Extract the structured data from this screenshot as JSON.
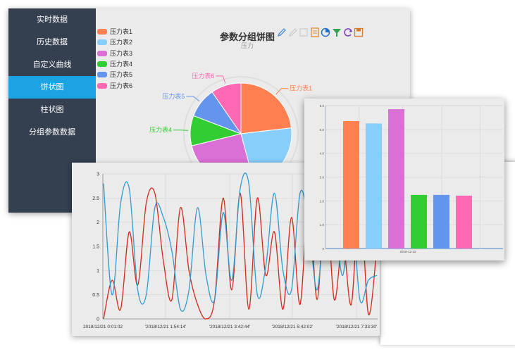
{
  "sidebar": {
    "items": [
      {
        "label": "实时数据"
      },
      {
        "label": "历史数据"
      },
      {
        "label": "自定义曲线"
      },
      {
        "label": "饼状图",
        "active": true
      },
      {
        "label": "柱状图"
      },
      {
        "label": "分组参数数据"
      }
    ]
  },
  "toolbox": {
    "icons": [
      "pen-icon",
      "pen-disabled-icon",
      "eraser-icon",
      "data-view-icon",
      "pie-switch-icon",
      "filter-icon",
      "refresh-icon",
      "save-image-icon"
    ]
  },
  "colors": {
    "sidebar_bg": "#343f50",
    "active": "#1ba3e4",
    "series": [
      "#ff7f50",
      "#87cefa",
      "#da70d6",
      "#32cd32",
      "#6495ed",
      "#ff69b4"
    ],
    "line_red": "#d42a1c",
    "line_blue": "#2f9bd0"
  },
  "chart_data": [
    {
      "type": "pie",
      "title": "参数分组饼图",
      "subtitle": "压力",
      "legend": [
        "压力表1",
        "压力表2",
        "压力表3",
        "压力表4",
        "压力表5",
        "压力表6"
      ],
      "legend_position": "left",
      "values": [
        5.3,
        5.2,
        5.8,
        2.2,
        2.2,
        2.2
      ],
      "labels_visible": [
        "压力表1",
        "压力表4",
        "压力表5",
        "压力表6"
      ]
    },
    {
      "type": "bar",
      "categories": [
        "2018-12-22"
      ],
      "series": [
        {
          "values": [
            5.35
          ]
        },
        {
          "values": [
            5.25
          ]
        },
        {
          "values": [
            5.85
          ]
        },
        {
          "values": [
            2.25
          ]
        },
        {
          "values": [
            2.25
          ]
        },
        {
          "values": [
            2.22
          ]
        }
      ],
      "yticks": [
        "0",
        "1.0",
        "2.0",
        "3.0",
        "4.0",
        "5.0",
        "6.0"
      ],
      "ylim": [
        0,
        6
      ],
      "grid": true
    },
    {
      "type": "line",
      "xticks": [
        "2018/12/21 0:01:02",
        "'2018/12/21 1:54:14'",
        "'2018/12/21 3:42:44'",
        "'2018/12/21 5:42:02'",
        "'2018/12/21 7:33:30'"
      ],
      "yticks": [
        "0",
        "0.5",
        "1",
        "1.5",
        "2",
        "2.5",
        "3"
      ],
      "ylim": [
        0,
        3
      ],
      "grid": true,
      "series": [
        {
          "color": "red",
          "values": [
            0.0,
            0.8,
            0.2,
            1.8,
            0.7,
            2.4,
            2.6,
            1.2,
            0.4,
            2.3,
            1.0,
            0.3,
            0.0,
            0.4,
            2.5,
            0.6,
            2.6,
            0.2,
            2.5,
            0.9,
            1.8,
            0.2,
            2.1,
            0.3,
            2.5,
            0.4,
            2.6,
            0.4,
            1.6,
            0.3,
            2.6,
            0.1,
            1.5
          ]
        },
        {
          "color": "blue",
          "values": [
            2.8,
            0.5,
            2.4,
            2.7,
            0.6,
            0.5,
            2.3,
            2.1,
            1.4,
            0.2,
            0.6,
            2.3,
            0.9,
            0.4,
            2.2,
            0.8,
            2.7,
            2.8,
            0.5,
            1.1,
            2.6,
            1.0,
            0.6,
            2.6,
            2.0,
            0.6,
            2.3,
            2.1,
            0.9,
            2.4,
            0.4,
            0.8,
            0.9
          ]
        }
      ]
    }
  ]
}
